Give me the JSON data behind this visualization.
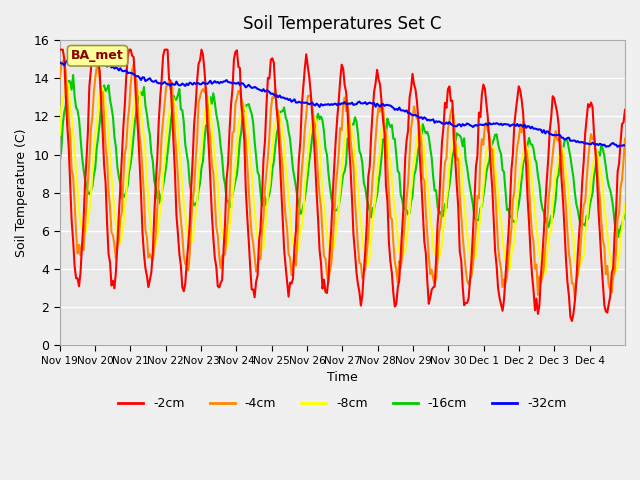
{
  "title": "Soil Temperatures Set C",
  "xlabel": "Time",
  "ylabel": "Soil Temperature (C)",
  "ylim": [
    0,
    16
  ],
  "bg_color": "#e8e8e8",
  "legend_label": "BA_met",
  "series": {
    "-2cm": {
      "color": "#ff0000",
      "lw": 1.5
    },
    "-4cm": {
      "color": "#ff8800",
      "lw": 1.5
    },
    "-8cm": {
      "color": "#ffff00",
      "lw": 1.5
    },
    "-16cm": {
      "color": "#00cc00",
      "lw": 1.5
    },
    "-32cm": {
      "color": "#0000ff",
      "lw": 1.5
    }
  },
  "xtick_labels": [
    "Nov 19",
    "Nov 20",
    "Nov 21",
    "Nov 22",
    "Nov 23",
    "Nov 24",
    "Nov 25",
    "Nov 26",
    "Nov 27",
    "Nov 28",
    "Nov 29",
    "Nov 30",
    "Dec 1",
    "Dec 2",
    "Dec 3",
    "Dec 4"
  ],
  "ytick_labels": [
    "0",
    "2",
    "4",
    "6",
    "8",
    "10",
    "12",
    "14",
    "16"
  ],
  "ytick_vals": [
    0,
    2,
    4,
    6,
    8,
    10,
    12,
    14,
    16
  ],
  "grid_color": "#ffffff",
  "annotation_box_color": "#ffff99",
  "annotation_text_color": "#880000",
  "n_days": 16
}
